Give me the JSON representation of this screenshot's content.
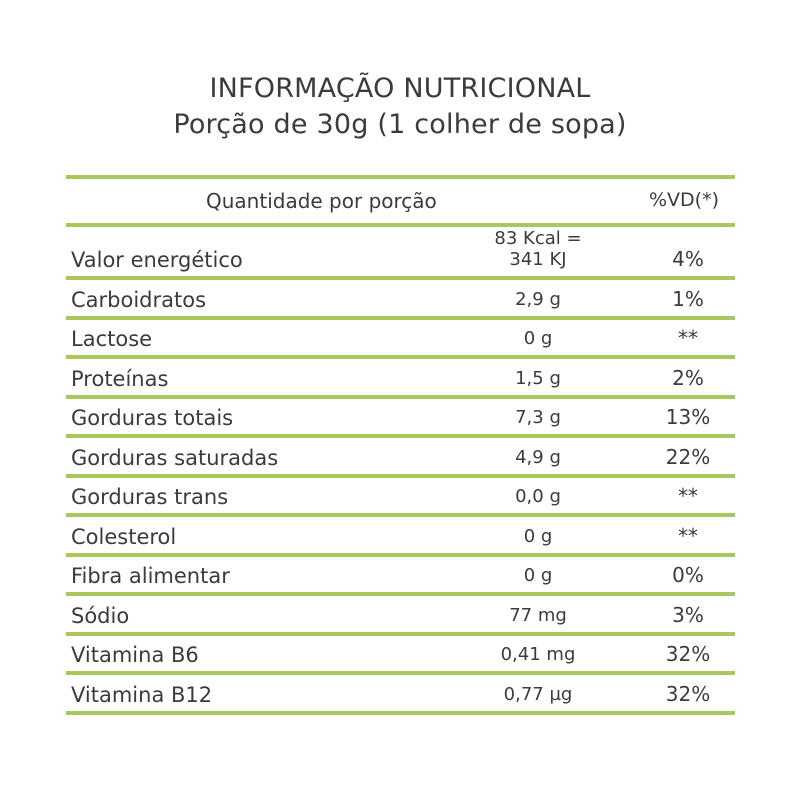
{
  "title": "INFORMAÇÃO NUTRICIONAL",
  "subtitle": "Porção de 30g (1 colher de sopa)",
  "header": {
    "quantity": "Quantidade por porção",
    "dv": "%VD(*)"
  },
  "accent_color": "#a9c75b",
  "rows": [
    {
      "name": "Valor energético",
      "amount": "83 Kcal = 341 KJ",
      "dv": "4%"
    },
    {
      "name": "Carboidratos",
      "amount": "2,9 g",
      "dv": "1%"
    },
    {
      "name": "Lactose",
      "amount": "0 g",
      "dv": "**"
    },
    {
      "name": "Proteínas",
      "amount": "1,5 g",
      "dv": "2%"
    },
    {
      "name": "Gorduras totais",
      "amount": "7,3 g",
      "dv": "13%"
    },
    {
      "name": "Gorduras saturadas",
      "amount": "4,9 g",
      "dv": "22%"
    },
    {
      "name": "Gorduras trans",
      "amount": "0,0 g",
      "dv": "**"
    },
    {
      "name": "Colesterol",
      "amount": "0 g",
      "dv": "**"
    },
    {
      "name": "Fibra alimentar",
      "amount": "0 g",
      "dv": "0%"
    },
    {
      "name": "Sódio",
      "amount": "77 mg",
      "dv": "3%"
    },
    {
      "name": "Vitamina B6",
      "amount": "0,41 mg",
      "dv": "32%"
    },
    {
      "name": "Vitamina B12",
      "amount": "0,77 µg",
      "dv": "32%"
    }
  ]
}
